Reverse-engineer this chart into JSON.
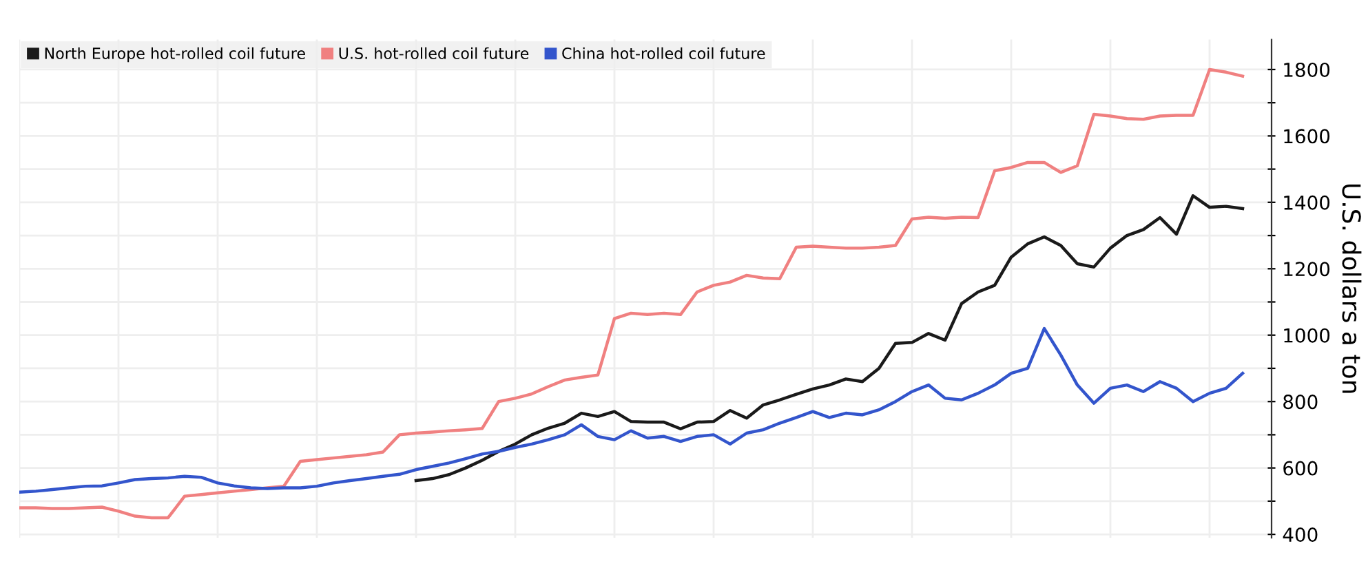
{
  "chart_data": {
    "type": "line",
    "categories": [
      null,
      null,
      null,
      null,
      null,
      null,
      null,
      null,
      null,
      null,
      null,
      null,
      null,
      null,
      null,
      null,
      null,
      null,
      null,
      null,
      null,
      null,
      null,
      null,
      null,
      null,
      null,
      null,
      null,
      null,
      null,
      null,
      null,
      null,
      null,
      null,
      null,
      null,
      null,
      null,
      null,
      null,
      null,
      null,
      null,
      null,
      null,
      null,
      null,
      null,
      null,
      null,
      null,
      null,
      null,
      null,
      null,
      null,
      null,
      null,
      null,
      null,
      null,
      null,
      null,
      null,
      null,
      null,
      null,
      null,
      null,
      null,
      null,
      null,
      null
    ],
    "series": [
      {
        "name": "North Europe hot-rolled coil future",
        "color": "#1a1a1a",
        "values": [
          null,
          null,
          null,
          null,
          null,
          null,
          null,
          null,
          null,
          null,
          null,
          null,
          null,
          null,
          null,
          null,
          null,
          null,
          null,
          null,
          null,
          null,
          null,
          null,
          562,
          568,
          580,
          600,
          623,
          650,
          672,
          700,
          720,
          735,
          765,
          755,
          770,
          740,
          738,
          738,
          718,
          738,
          740,
          773,
          750,
          790,
          805,
          822,
          838,
          850,
          868,
          860,
          900,
          975,
          978,
          1005,
          985,
          1095,
          1130,
          1150,
          1235,
          1275,
          1296,
          1270,
          1215,
          1205,
          1262,
          1300,
          1318,
          1354,
          1304,
          1420,
          1385,
          1388,
          1381
        ]
      },
      {
        "name": "U.S. hot-rolled coil future",
        "color": "#f08080",
        "values": [
          480,
          480,
          478,
          478,
          480,
          482,
          470,
          455,
          450,
          450,
          515,
          520,
          525,
          530,
          535,
          540,
          545,
          620,
          625,
          630,
          635,
          640,
          648,
          700,
          705,
          708,
          712,
          715,
          719,
          800,
          810,
          823,
          845,
          865,
          873,
          880,
          1050,
          1066,
          1062,
          1066,
          1062,
          1130,
          1150,
          1160,
          1180,
          1172,
          1170,
          1265,
          1268,
          1265,
          1262,
          1262,
          1265,
          1270,
          1350,
          1355,
          1352,
          1355,
          1354,
          1495,
          1505,
          1520,
          1520,
          1490,
          1510,
          1665,
          1660,
          1652,
          1650,
          1660,
          1662,
          1662,
          1800,
          1792,
          1780
        ]
      },
      {
        "name": "China hot-rolled coil future",
        "color": "#3355cc",
        "values": [
          527,
          530,
          535,
          540,
          545,
          546,
          555,
          565,
          568,
          570,
          575,
          572,
          555,
          546,
          540,
          538,
          540,
          540,
          545,
          555,
          562,
          568,
          575,
          581,
          595,
          605,
          615,
          628,
          642,
          650,
          662,
          672,
          685,
          700,
          730,
          695,
          685,
          712,
          690,
          695,
          680,
          695,
          700,
          672,
          705,
          715,
          735,
          752,
          770,
          752,
          765,
          760,
          775,
          800,
          830,
          850,
          810,
          805,
          825,
          850,
          885,
          900,
          1020,
          940,
          850,
          795,
          840,
          850,
          830,
          860,
          840,
          800,
          825,
          840,
          885
        ]
      }
    ],
    "ylabel": "U.S. dollars a ton",
    "ylim": [
      390,
      1890
    ],
    "yticks": [
      400,
      {
        "value": 500,
        "label": null
      },
      600,
      {
        "value": 700,
        "label": null
      },
      800,
      {
        "value": 900,
        "label": null
      },
      1000,
      {
        "value": 1100,
        "label": null
      },
      1200,
      {
        "value": 1300,
        "label": null
      },
      1400,
      {
        "value": 1500,
        "label": null
      },
      1600,
      {
        "value": 1700,
        "label": null
      },
      1800
    ],
    "grid": true,
    "legend": "top left",
    "tick_labels": "y"
  }
}
